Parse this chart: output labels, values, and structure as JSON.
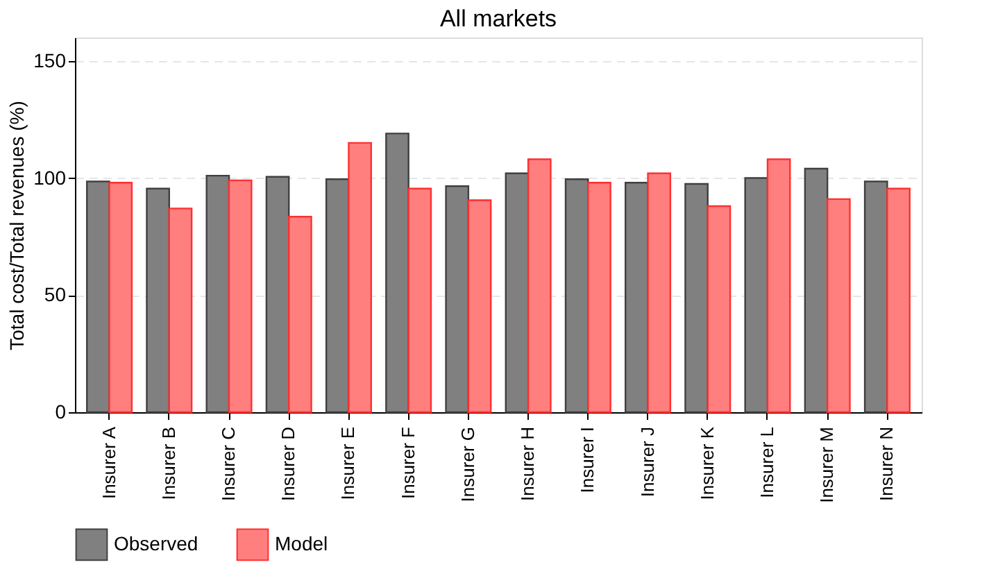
{
  "chart_data": {
    "type": "bar",
    "title": "All markets",
    "ylabel": "Total cost/Total revenues (%)",
    "categories": [
      "Insurer A",
      "Insurer B",
      "Insurer C",
      "Insurer D",
      "Insurer E",
      "Insurer F",
      "Insurer G",
      "Insurer H",
      "Insurer I",
      "Insurer J",
      "Insurer K",
      "Insurer L",
      "Insurer M",
      "Insurer N"
    ],
    "series": [
      {
        "name": "Observed",
        "color": "#808080",
        "values": [
          98.5,
          95.5,
          101,
          100.5,
          99.5,
          119,
          96.5,
          102,
          99.5,
          98,
          97.5,
          100,
          104,
          98.5
        ]
      },
      {
        "name": "Model",
        "color": "#ff7f7f",
        "values": [
          98,
          87,
          99,
          83.5,
          115,
          95.5,
          90.5,
          108,
          98,
          102,
          88,
          108,
          91,
          95.5
        ]
      }
    ],
    "ylim": [
      0,
      160
    ],
    "yticks": [
      0,
      50,
      100,
      150
    ],
    "grid": "y",
    "legend": "bottom"
  }
}
